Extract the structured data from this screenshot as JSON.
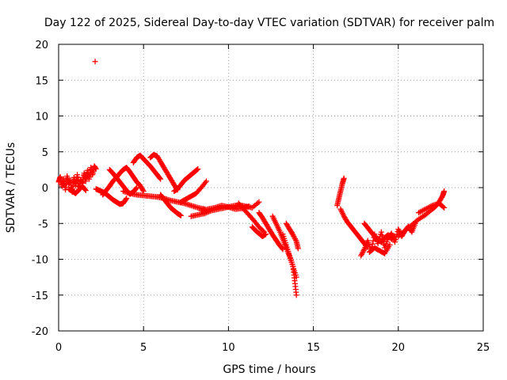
{
  "chart_data": {
    "type": "scatter",
    "title": "Day 122 of 2025, Sidereal Day-to-day VTEC variation (SDTVAR) for receiver palm",
    "xlabel": "GPS time / hours",
    "ylabel": "SDTVAR / TECUs",
    "xlim": [
      0,
      25
    ],
    "ylim": [
      -20,
      20
    ],
    "xticks": [
      0,
      5,
      10,
      15,
      20,
      25
    ],
    "yticks": [
      -20,
      -15,
      -10,
      -5,
      0,
      5,
      10,
      15,
      20
    ],
    "grid": true,
    "marker": "+",
    "marker_color": "#ff0000",
    "series": [
      {
        "name": "cluster-early",
        "x": [
          0.0,
          0.1,
          0.2,
          0.3,
          0.4,
          0.5,
          0.6,
          0.7,
          0.8,
          0.9,
          1.0,
          1.1,
          1.2,
          1.3,
          1.4,
          1.5,
          1.6,
          1.7,
          1.8,
          1.9,
          2.0,
          2.1,
          2.2
        ],
        "y": [
          0.8,
          1.5,
          0.2,
          1.2,
          -0.3,
          1.6,
          0.5,
          1.0,
          -0.6,
          1.4,
          0.3,
          1.8,
          -0.2,
          1.1,
          0.6,
          2.0,
          0.9,
          2.4,
          1.2,
          2.8,
          1.8,
          3.0,
          2.6
        ]
      },
      {
        "name": "early-dip",
        "x": [
          0.6,
          0.8,
          1.0,
          1.2,
          1.4,
          1.6
        ],
        "y": [
          -0.2,
          -0.5,
          -0.8,
          -0.3,
          0.2,
          -0.4
        ]
      },
      {
        "name": "outlier",
        "x": [
          2.15
        ],
        "y": [
          17.6
        ]
      },
      {
        "name": "arc-a",
        "x": [
          2.2,
          2.4,
          2.6,
          2.8,
          3.0,
          3.2,
          3.4,
          3.6,
          3.8,
          4.0
        ],
        "y": [
          -0.2,
          -0.4,
          -0.6,
          -0.9,
          -1.3,
          -1.7,
          -2.0,
          -2.3,
          -2.2,
          -1.5
        ]
      },
      {
        "name": "arc-b",
        "x": [
          2.6,
          2.8,
          3.0,
          3.2,
          3.4,
          3.6,
          3.8,
          4.0,
          4.2,
          4.4,
          4.6,
          4.8,
          5.0
        ],
        "y": [
          -1.0,
          -0.4,
          0.2,
          0.9,
          1.4,
          2.0,
          2.5,
          2.8,
          2.2,
          1.5,
          0.8,
          0.3,
          -0.5
        ]
      },
      {
        "name": "arc-c",
        "x": [
          3.0,
          3.2,
          3.4,
          3.6,
          3.8,
          4.0,
          4.2,
          4.4,
          4.6
        ],
        "y": [
          2.5,
          2.0,
          1.4,
          0.8,
          0.2,
          -0.4,
          -0.9,
          -0.6,
          0.0
        ]
      },
      {
        "name": "band-mid",
        "x": [
          3.8,
          4.2,
          4.6,
          5.0,
          5.4,
          5.8,
          6.2,
          6.6,
          7.0,
          7.4,
          7.8,
          8.2,
          8.6
        ],
        "y": [
          -0.5,
          -0.8,
          -1.0,
          -1.1,
          -1.2,
          -1.3,
          -1.5,
          -1.8,
          -2.0,
          -2.2,
          -2.5,
          -2.8,
          -3.0
        ]
      },
      {
        "name": "arc-d",
        "x": [
          4.4,
          4.6,
          4.8,
          5.0,
          5.2,
          5.4,
          5.6,
          5.8,
          6.0
        ],
        "y": [
          3.5,
          4.2,
          4.5,
          4.0,
          3.5,
          3.0,
          2.4,
          1.8,
          1.2
        ]
      },
      {
        "name": "arc-e",
        "x": [
          5.4,
          5.6,
          5.8,
          6.0,
          6.2,
          6.4,
          6.6,
          6.8,
          7.0
        ],
        "y": [
          4.2,
          4.6,
          4.4,
          3.6,
          2.8,
          2.0,
          1.2,
          0.4,
          -0.3
        ]
      },
      {
        "name": "arc-f",
        "x": [
          6.0,
          6.2,
          6.4,
          6.6,
          6.8,
          7.0,
          7.2
        ],
        "y": [
          -1.0,
          -1.6,
          -2.2,
          -2.8,
          -3.2,
          -3.6,
          -3.9
        ]
      },
      {
        "name": "arc-g",
        "x": [
          6.8,
          7.0,
          7.2,
          7.4,
          7.6,
          7.8,
          8.0,
          8.2
        ],
        "y": [
          -0.5,
          -0.2,
          0.4,
          1.0,
          1.4,
          1.8,
          2.2,
          2.6
        ]
      },
      {
        "name": "arc-h",
        "x": [
          7.2,
          7.5,
          7.8,
          8.1,
          8.4,
          8.7
        ],
        "y": [
          -2.0,
          -1.6,
          -1.2,
          -0.8,
          0.0,
          0.9
        ]
      },
      {
        "name": "band-low",
        "x": [
          7.8,
          8.2,
          8.6,
          9.0,
          9.4,
          9.8,
          10.2,
          10.6,
          11.0,
          11.4,
          11.8
        ],
        "y": [
          -4.0,
          -3.8,
          -3.6,
          -3.2,
          -3.0,
          -2.8,
          -2.6,
          -2.4,
          -2.6,
          -2.8,
          -2.0
        ]
      },
      {
        "name": "band-low2",
        "x": [
          8.4,
          8.8,
          9.2,
          9.6,
          10.0,
          10.4,
          10.8,
          11.2
        ],
        "y": [
          -3.2,
          -3.0,
          -2.8,
          -2.5,
          -2.7,
          -3.0,
          -2.9,
          -2.6
        ]
      },
      {
        "name": "arc-i",
        "x": [
          10.6,
          10.9,
          11.2,
          11.5,
          11.8,
          12.1
        ],
        "y": [
          -2.2,
          -3.0,
          -3.8,
          -4.6,
          -5.5,
          -6.2
        ]
      },
      {
        "name": "arc-j",
        "x": [
          11.4,
          11.6,
          11.8,
          12.0,
          12.2
        ],
        "y": [
          -5.5,
          -6.0,
          -6.4,
          -6.8,
          -6.5
        ]
      },
      {
        "name": "arc-k",
        "x": [
          11.8,
          12.0,
          12.2,
          12.4,
          12.6,
          12.8,
          13.0,
          13.2
        ],
        "y": [
          -3.5,
          -4.2,
          -5.0,
          -5.8,
          -6.6,
          -7.3,
          -8.0,
          -8.6
        ]
      },
      {
        "name": "arc-l",
        "x": [
          12.6,
          12.8,
          13.0,
          13.2,
          13.4,
          13.6,
          13.8,
          14.0
        ],
        "y": [
          -4.0,
          -5.0,
          -6.0,
          -7.2,
          -8.4,
          -9.6,
          -11.0,
          -12.5
        ]
      },
      {
        "name": "arc-m",
        "x": [
          13.2,
          13.4,
          13.6,
          13.8,
          13.9,
          14.0
        ],
        "y": [
          -6.5,
          -8.0,
          -9.5,
          -11.0,
          -13.0,
          -15.0
        ]
      },
      {
        "name": "arc-n",
        "x": [
          13.4,
          13.6,
          13.8,
          14.0,
          14.1
        ],
        "y": [
          -5.0,
          -5.8,
          -6.6,
          -7.5,
          -8.5
        ]
      },
      {
        "name": "late-rise",
        "x": [
          16.4,
          16.5,
          16.6,
          16.7,
          16.8
        ],
        "y": [
          -2.5,
          -1.5,
          -0.5,
          0.5,
          1.3
        ]
      },
      {
        "name": "late-drop",
        "x": [
          16.6,
          16.8,
          17.0,
          17.2,
          17.4,
          17.6,
          17.8,
          18.0,
          18.2
        ],
        "y": [
          -3.0,
          -4.0,
          -4.8,
          -5.4,
          -6.0,
          -6.6,
          -7.2,
          -7.8,
          -8.3
        ]
      },
      {
        "name": "late-cluster",
        "x": [
          17.8,
          18.0,
          18.2,
          18.4,
          18.6,
          18.8,
          19.0,
          19.2,
          19.4,
          19.6,
          19.8,
          20.0,
          20.2,
          20.4,
          20.6,
          20.8,
          21.0
        ],
        "y": [
          -9.5,
          -8.6,
          -7.4,
          -8.8,
          -6.5,
          -7.8,
          -6.2,
          -8.4,
          -7.0,
          -6.4,
          -7.6,
          -5.8,
          -6.8,
          -6.0,
          -5.4,
          -6.2,
          -5.0
        ]
      },
      {
        "name": "late-cluster2",
        "x": [
          18.0,
          18.2,
          18.4,
          18.6,
          18.8,
          19.0,
          19.2,
          19.4,
          19.6,
          19.8
        ],
        "y": [
          -5.0,
          -5.6,
          -6.2,
          -6.8,
          -7.2,
          -7.6,
          -7.0,
          -6.6,
          -7.2,
          -6.8
        ]
      },
      {
        "name": "late-cluster3",
        "x": [
          18.3,
          18.6,
          18.9,
          19.2,
          19.5
        ],
        "y": [
          -9.0,
          -8.4,
          -8.8,
          -9.2,
          -8.0
        ]
      },
      {
        "name": "tail",
        "x": [
          20.0,
          20.4,
          20.8,
          21.2,
          21.6,
          22.0,
          22.2,
          22.4,
          22.6,
          22.7
        ],
        "y": [
          -6.8,
          -6.0,
          -5.2,
          -4.4,
          -3.8,
          -3.0,
          -2.6,
          -2.0,
          -1.2,
          -0.5
        ]
      },
      {
        "name": "tail2",
        "x": [
          21.2,
          21.6,
          22.0,
          22.4,
          22.7
        ],
        "y": [
          -3.5,
          -3.0,
          -2.5,
          -2.2,
          -2.8
        ]
      }
    ]
  }
}
